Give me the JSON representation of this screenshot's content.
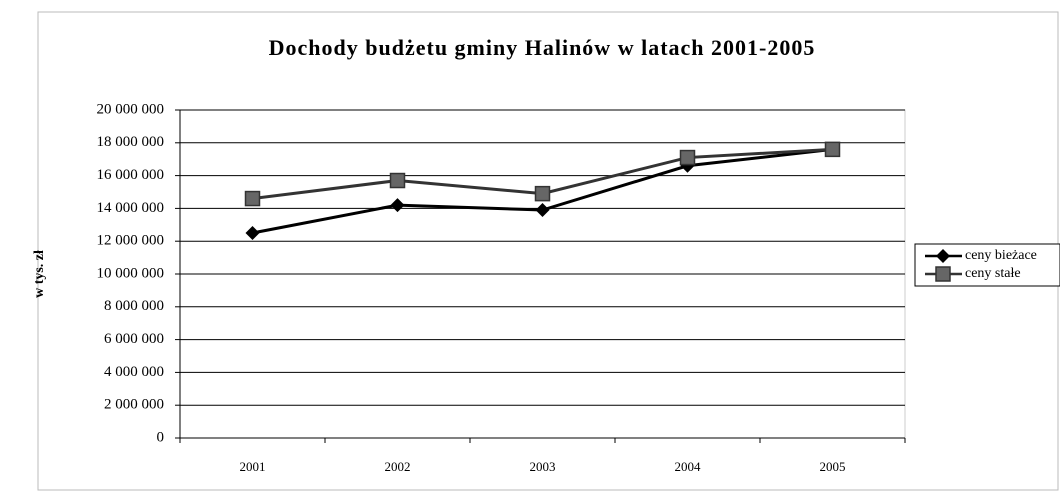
{
  "chart_data": {
    "type": "line",
    "title": "Dochody budżetu gminy Halinów w latach 2001-2005",
    "y_label": "w tys. zł",
    "categories": [
      "2001",
      "2002",
      "2003",
      "2004",
      "2005"
    ],
    "series": [
      {
        "name": "ceny bieżace",
        "color": "#000000",
        "marker": "diamond",
        "values": [
          12500000,
          14200000,
          13900000,
          16600000,
          17600000
        ]
      },
      {
        "name": "ceny stałe",
        "color": "#333333",
        "marker": "square",
        "values": [
          14600000,
          15700000,
          14900000,
          17100000,
          17600000
        ]
      }
    ],
    "ylim": [
      0,
      20000000
    ],
    "yticks": [
      0,
      {
        "value": 2000000,
        "label": "2 000 000"
      },
      {
        "value": 4000000,
        "label": "4 000 000"
      },
      {
        "value": 6000000,
        "label": "6 000 000"
      },
      {
        "value": 8000000,
        "label": "8 000 000"
      },
      {
        "value": 10000000,
        "label": "10 000 000"
      },
      {
        "value": 12000000,
        "label": "12 000 000"
      },
      {
        "value": 14000000,
        "label": "14 000 000"
      },
      {
        "value": 16000000,
        "label": "16 000 000"
      },
      {
        "value": 18000000,
        "label": "18 000 000"
      },
      {
        "value": 20000000,
        "label": "20 000 000"
      }
    ],
    "grid": true,
    "legend": "right"
  }
}
